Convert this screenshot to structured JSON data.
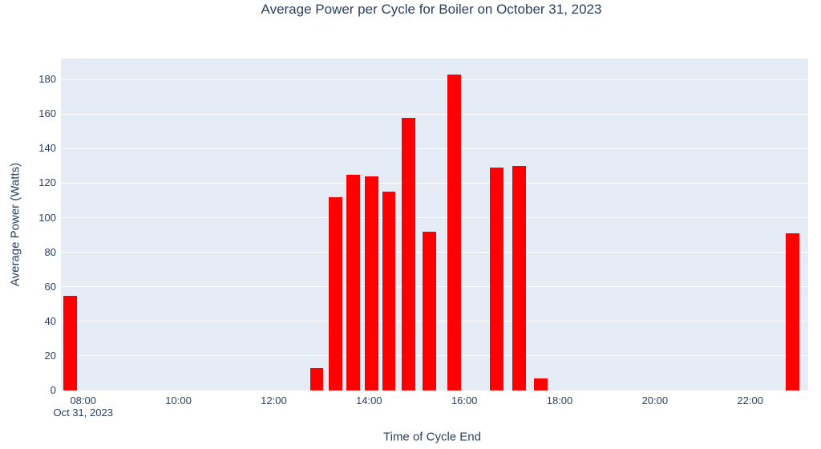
{
  "chart_data": {
    "type": "bar",
    "title": "Average Power per Cycle for Boiler on October 31, 2023",
    "xlabel": "Time of Cycle End",
    "ylabel": "Average Power (Watts)",
    "x_date_label": "Oct 31, 2023",
    "x_ticks": [
      "08:00",
      "10:00",
      "12:00",
      "14:00",
      "16:00",
      "18:00",
      "20:00",
      "22:00"
    ],
    "y_ticks": [
      0,
      20,
      40,
      60,
      80,
      100,
      120,
      140,
      160,
      180
    ],
    "ylim": [
      0,
      192.15
    ],
    "x_range_minutes": [
      452,
      1393
    ],
    "grid": "horizontal-only",
    "legend": "none",
    "bars": [
      {
        "time": "07:44",
        "value": 55
      },
      {
        "time": "12:54",
        "value": 13
      },
      {
        "time": "13:18",
        "value": 112
      },
      {
        "time": "13:40",
        "value": 125
      },
      {
        "time": "14:03",
        "value": 124
      },
      {
        "time": "14:25",
        "value": 115
      },
      {
        "time": "14:50",
        "value": 158
      },
      {
        "time": "15:16",
        "value": 92
      },
      {
        "time": "15:47",
        "value": 183
      },
      {
        "time": "16:41",
        "value": 129
      },
      {
        "time": "17:09",
        "value": 130
      },
      {
        "time": "17:36",
        "value": 7
      },
      {
        "time": "22:53",
        "value": 91
      }
    ],
    "bar_width_minutes": 17,
    "colors": {
      "bar": "#ff0000",
      "plot_background": "#e5ecf6",
      "gridline": "#ffffff",
      "text": "#2a3f5f",
      "paper_background": "#ffffff"
    }
  }
}
